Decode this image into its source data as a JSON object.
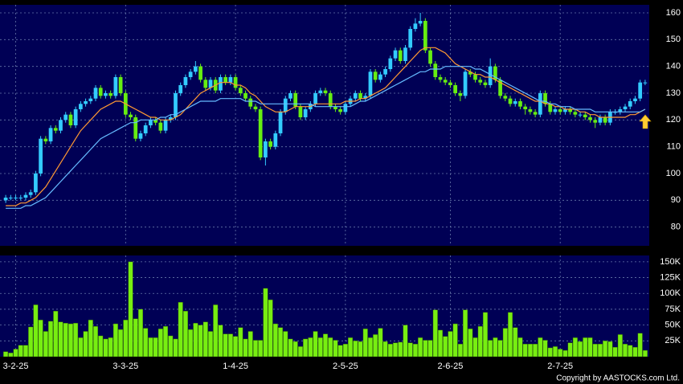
{
  "chart_data": [
    {
      "type": "candlestick",
      "open": [
        90,
        91,
        91,
        91,
        91,
        92,
        93,
        100,
        113,
        112,
        117,
        116,
        120,
        122,
        118,
        124,
        126,
        127,
        128,
        132,
        129,
        130,
        129,
        136,
        130,
        122,
        121,
        113,
        115,
        118,
        120,
        119,
        116,
        120,
        121,
        130,
        133,
        136,
        138,
        140,
        135,
        132,
        135,
        131,
        136,
        134,
        136,
        132,
        130,
        128,
        125,
        124,
        106,
        112,
        110,
        115,
        123,
        128,
        130,
        125,
        121,
        124,
        126,
        130,
        131,
        130,
        125,
        124,
        123,
        126,
        128,
        130,
        128,
        129,
        138,
        135,
        137,
        139,
        143,
        146,
        142,
        147,
        154,
        156,
        157,
        146,
        141,
        136,
        135,
        134,
        133,
        130,
        129,
        138,
        137,
        135,
        134,
        133,
        140,
        135,
        129,
        128,
        126,
        127,
        125,
        124,
        123,
        122,
        130,
        126,
        123,
        124,
        123,
        124,
        123,
        122,
        122,
        121,
        120,
        119,
        121,
        119,
        123,
        123,
        124,
        125,
        127,
        128,
        134
      ],
      "high": [
        92,
        92,
        92,
        92,
        93,
        94,
        101,
        114,
        114,
        118,
        118,
        121,
        123,
        123,
        125,
        127,
        128,
        129,
        133,
        133,
        131,
        131,
        137,
        137,
        131,
        123,
        122,
        116,
        119,
        121,
        121,
        120,
        121,
        122,
        131,
        134,
        137,
        139,
        142,
        141,
        136,
        136,
        136,
        137,
        137,
        137,
        137,
        133,
        131,
        129,
        126,
        125,
        113,
        113,
        116,
        124,
        129,
        131,
        131,
        126,
        125,
        127,
        131,
        132,
        132,
        131,
        126,
        125,
        127,
        129,
        131,
        131,
        130,
        139,
        139,
        138,
        140,
        144,
        147,
        147,
        148,
        155,
        158,
        160,
        158,
        147,
        142,
        137,
        136,
        135,
        134,
        131,
        139,
        139,
        138,
        136,
        135,
        143,
        141,
        136,
        130,
        129,
        128,
        128,
        126,
        125,
        124,
        131,
        131,
        127,
        125,
        125,
        125,
        125,
        124,
        123,
        123,
        122,
        121,
        122,
        122,
        124,
        124,
        125,
        126,
        128,
        129,
        135,
        135
      ],
      "low": [
        89,
        90,
        90,
        90,
        90,
        91,
        92,
        99,
        111,
        111,
        115,
        115,
        119,
        117,
        117,
        123,
        125,
        126,
        127,
        128,
        128,
        128,
        128,
        129,
        121,
        120,
        112,
        112,
        114,
        117,
        118,
        115,
        115,
        119,
        120,
        129,
        132,
        135,
        137,
        134,
        131,
        131,
        130,
        130,
        133,
        133,
        131,
        129,
        127,
        124,
        123,
        105,
        103,
        109,
        109,
        114,
        122,
        127,
        124,
        120,
        120,
        123,
        125,
        129,
        129,
        124,
        123,
        122,
        122,
        125,
        127,
        127,
        127,
        128,
        134,
        134,
        136,
        138,
        142,
        141,
        141,
        146,
        153,
        155,
        145,
        140,
        135,
        134,
        133,
        132,
        129,
        127,
        128,
        136,
        134,
        133,
        132,
        132,
        134,
        128,
        127,
        125,
        125,
        124,
        122,
        122,
        121,
        121,
        125,
        122,
        122,
        122,
        122,
        122,
        121,
        121,
        120,
        119,
        117,
        118,
        118,
        118,
        122,
        122,
        123,
        124,
        126,
        127,
        133
      ],
      "close": [
        91,
        91,
        91,
        91,
        92,
        93,
        100,
        113,
        112,
        117,
        116,
        120,
        122,
        118,
        124,
        126,
        127,
        128,
        132,
        129,
        130,
        129,
        136,
        130,
        122,
        121,
        113,
        115,
        118,
        120,
        119,
        116,
        120,
        121,
        130,
        133,
        136,
        138,
        140,
        135,
        132,
        135,
        131,
        136,
        134,
        136,
        132,
        130,
        128,
        125,
        124,
        106,
        112,
        110,
        115,
        123,
        128,
        130,
        125,
        121,
        124,
        126,
        130,
        131,
        130,
        125,
        124,
        123,
        126,
        128,
        130,
        128,
        129,
        138,
        135,
        137,
        139,
        143,
        146,
        142,
        147,
        154,
        156,
        157,
        146,
        141,
        136,
        135,
        134,
        133,
        130,
        129,
        138,
        137,
        135,
        134,
        133,
        140,
        135,
        129,
        128,
        126,
        127,
        125,
        124,
        123,
        122,
        130,
        126,
        123,
        124,
        123,
        124,
        123,
        122,
        122,
        121,
        120,
        119,
        121,
        119,
        123,
        123,
        124,
        125,
        127,
        128,
        134,
        134
      ],
      "up_color": "#33ccff",
      "down_color": "#66ee11",
      "lines": [
        {
          "color": "#ff9933",
          "values": [
            88,
            88,
            88,
            89,
            89,
            90,
            91,
            93,
            95,
            98,
            101,
            104,
            107,
            110,
            113,
            116,
            118,
            120,
            122,
            124,
            125,
            126,
            127,
            127,
            126,
            125,
            124,
            123,
            122,
            121,
            121,
            120,
            120,
            120,
            121,
            122,
            124,
            126,
            128,
            130,
            131,
            132,
            133,
            134,
            134,
            134,
            133,
            133,
            132,
            130,
            129,
            127,
            125,
            124,
            123,
            123,
            123,
            124,
            125,
            125,
            125,
            125,
            126,
            126,
            126,
            126,
            126,
            126,
            127,
            127,
            127,
            128,
            128,
            129,
            130,
            131,
            132,
            134,
            136,
            138,
            140,
            142,
            144,
            146,
            147,
            147,
            147,
            146,
            145,
            143,
            141,
            140,
            139,
            138,
            137,
            137,
            136,
            136,
            135,
            134,
            133,
            132,
            131,
            130,
            129,
            128,
            127,
            127,
            126,
            126,
            125,
            125,
            124,
            124,
            124,
            123,
            123,
            122,
            122,
            121,
            121,
            121,
            121,
            121,
            121,
            122,
            122,
            123,
            124
          ]
        },
        {
          "color": "#66bbff",
          "values": [
            87,
            87,
            87,
            87,
            88,
            88,
            89,
            90,
            91,
            93,
            95,
            97,
            99,
            101,
            103,
            105,
            107,
            109,
            111,
            113,
            114,
            115,
            116,
            117,
            118,
            119,
            119,
            120,
            120,
            120,
            120,
            121,
            121,
            122,
            122,
            123,
            124,
            125,
            126,
            127,
            127,
            127,
            127,
            128,
            128,
            128,
            128,
            128,
            127,
            127,
            127,
            126,
            126,
            126,
            126,
            126,
            126,
            126,
            126,
            126,
            126,
            126,
            125,
            125,
            125,
            125,
            125,
            125,
            125,
            125,
            126,
            127,
            127,
            128,
            129,
            130,
            131,
            132,
            133,
            134,
            135,
            136,
            137,
            138,
            138,
            139,
            139,
            139,
            140,
            140,
            140,
            140,
            140,
            140,
            139,
            139,
            138,
            137,
            136,
            135,
            134,
            133,
            132,
            131,
            130,
            129,
            128,
            127,
            127,
            126,
            126,
            125,
            125,
            125,
            124,
            124,
            124,
            124,
            123,
            123,
            123,
            123,
            123,
            123,
            123,
            123,
            123,
            123,
            124
          ]
        }
      ],
      "ylim": [
        73,
        163
      ],
      "yticks": [
        80,
        90,
        100,
        110,
        120,
        130,
        140,
        150,
        160
      ],
      "grid": true
    },
    {
      "type": "bar",
      "categories": [
        null,
        null,
        "3-2-25",
        null,
        null,
        null,
        null,
        null,
        null,
        null,
        null,
        null,
        null,
        null,
        null,
        null,
        null,
        null,
        null,
        null,
        null,
        null,
        null,
        null,
        "3-3-25",
        null,
        null,
        null,
        null,
        null,
        null,
        null,
        null,
        null,
        null,
        null,
        null,
        null,
        null,
        null,
        null,
        null,
        null,
        null,
        null,
        null,
        "1-4-25",
        null,
        null,
        null,
        null,
        null,
        null,
        null,
        null,
        null,
        null,
        null,
        null,
        null,
        null,
        null,
        null,
        null,
        null,
        null,
        null,
        null,
        "2-5-25",
        null,
        null,
        null,
        null,
        null,
        null,
        null,
        null,
        null,
        null,
        null,
        null,
        null,
        null,
        null,
        null,
        null,
        null,
        null,
        null,
        "2-6-25",
        null,
        null,
        null,
        null,
        null,
        null,
        null,
        null,
        null,
        null,
        null,
        null,
        null,
        null,
        null,
        null,
        null,
        null,
        null,
        null,
        null,
        "2-7-25",
        null,
        null,
        null,
        null,
        null,
        null,
        null,
        null,
        null,
        null,
        null,
        null,
        null,
        null,
        null,
        null,
        null
      ],
      "values": [
        8000,
        6000,
        12000,
        18000,
        18000,
        47000,
        82000,
        58000,
        40000,
        56000,
        72000,
        55000,
        53000,
        52000,
        53000,
        30000,
        40000,
        58000,
        48000,
        33000,
        28000,
        30000,
        52000,
        43000,
        58000,
        150000,
        60000,
        75000,
        45000,
        30000,
        30000,
        44000,
        48000,
        33000,
        28000,
        86000,
        72000,
        43000,
        53000,
        50000,
        55000,
        40000,
        82000,
        50000,
        36000,
        36000,
        32000,
        46000,
        28000,
        40000,
        26000,
        26000,
        108000,
        90000,
        52000,
        46000,
        40000,
        28000,
        24000,
        16000,
        28000,
        30000,
        40000,
        30000,
        36000,
        30000,
        26000,
        18000,
        20000,
        30000,
        25000,
        24000,
        44000,
        30000,
        35000,
        45000,
        24000,
        20000,
        22000,
        23000,
        50000,
        22000,
        20000,
        30000,
        26000,
        26000,
        74000,
        42000,
        32000,
        40000,
        52000,
        20000,
        74000,
        44000,
        30000,
        48000,
        70000,
        26000,
        30000,
        26000,
        45000,
        70000,
        46000,
        30000,
        20000,
        20000,
        20000,
        30000,
        26000,
        14000,
        16000,
        12000,
        10000,
        22000,
        30000,
        24000,
        30000,
        30000,
        20000,
        20000,
        25000,
        24000,
        15000,
        35000,
        20000,
        18000,
        15000,
        37000,
        10000
      ],
      "color": "#77ee11",
      "ylim": [
        0,
        160000
      ],
      "yticks": [
        {
          "value": 25000,
          "label": "25K"
        },
        {
          "value": 50000,
          "label": "50K"
        },
        {
          "value": 75000,
          "label": "75K"
        },
        {
          "value": 100000,
          "label": "100K"
        },
        {
          "value": 125000,
          "label": "125K"
        },
        {
          "value": 150000,
          "label": "150K"
        }
      ],
      "grid": true
    }
  ],
  "footer": "Copyright by AASTOCKS.com Ltd."
}
